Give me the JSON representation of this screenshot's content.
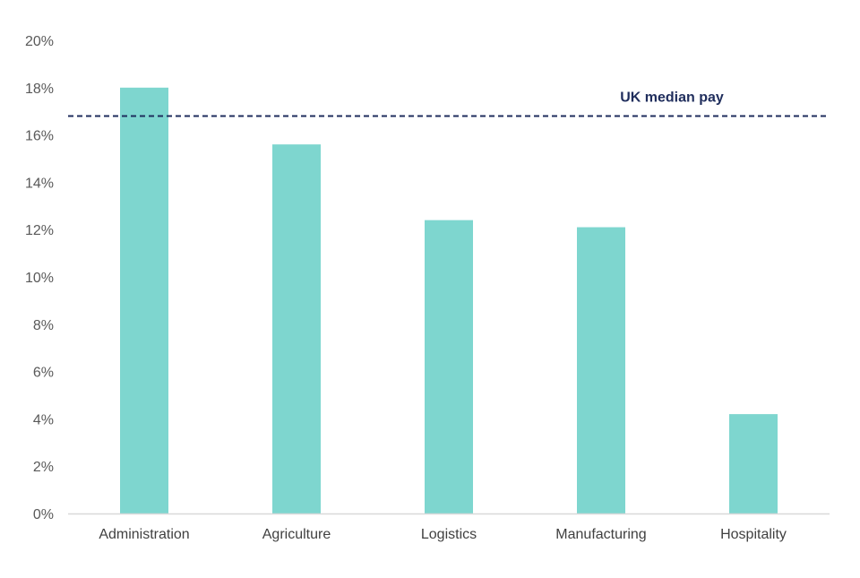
{
  "chart_data": {
    "type": "bar",
    "title": "",
    "xlabel": "",
    "ylabel": "",
    "categories": [
      "Administration",
      "Agriculture",
      "Logistics",
      "Manufacturing",
      "Hospitality"
    ],
    "values": [
      18.0,
      15.6,
      12.4,
      12.1,
      4.2
    ],
    "unit": "%",
    "ylim": [
      0,
      20
    ],
    "yticks": [
      0,
      2,
      4,
      6,
      8,
      10,
      12,
      14,
      16,
      18,
      20
    ],
    "ytick_labels": [
      "0%",
      "2%",
      "4%",
      "6%",
      "8%",
      "10%",
      "12%",
      "14%",
      "16%",
      "18%",
      "20%"
    ],
    "grid": false,
    "legend": "none",
    "bar_color": "#7ed6cf",
    "reference_line": {
      "label": "UK median pay",
      "value": 16.8,
      "style": "dashed",
      "color": "#1f2d5c"
    }
  }
}
